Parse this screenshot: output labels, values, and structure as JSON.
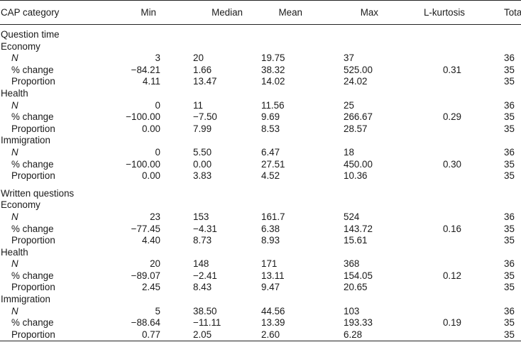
{
  "headers": [
    "CAP category",
    "Min",
    "Median",
    "Mean",
    "Max",
    "L-kurtosis",
    "Total"
  ],
  "sections": [
    {
      "title": "Question time",
      "groups": [
        {
          "name": "Economy",
          "rows": [
            {
              "label": "N",
              "italic": true,
              "min": "3",
              "median": "20",
              "mean": "19.75",
              "max": "37",
              "lk": "",
              "total": "36"
            },
            {
              "label": "% change",
              "italic": false,
              "min": "−84.21",
              "median": "1.66",
              "mean": "38.32",
              "max": "525.00",
              "lk": "0.31",
              "total": "35"
            },
            {
              "label": "Proportion",
              "italic": false,
              "min": "4.11",
              "median": "13.47",
              "mean": "14.02",
              "max": "24.02",
              "lk": "",
              "total": "35"
            }
          ]
        },
        {
          "name": "Health",
          "rows": [
            {
              "label": "N",
              "italic": true,
              "min": "0",
              "median": "11",
              "mean": "11.56",
              "max": "25",
              "lk": "",
              "total": "36"
            },
            {
              "label": "% change",
              "italic": false,
              "min": "−100.00",
              "median": "−7.50",
              "mean": "9.69",
              "max": "266.67",
              "lk": "0.29",
              "total": "35"
            },
            {
              "label": "Proportion",
              "italic": false,
              "min": "0.00",
              "median": "7.99",
              "mean": "8.53",
              "max": "28.57",
              "lk": "",
              "total": "35"
            }
          ]
        },
        {
          "name": "Immigration",
          "rows": [
            {
              "label": "N",
              "italic": true,
              "min": "0",
              "median": "5.50",
              "mean": "6.47",
              "max": "18",
              "lk": "",
              "total": "36"
            },
            {
              "label": "% change",
              "italic": false,
              "min": "−100.00",
              "median": "0.00",
              "mean": "27.51",
              "max": "450.00",
              "lk": "0.30",
              "total": "35"
            },
            {
              "label": "Proportion",
              "italic": false,
              "min": "0.00",
              "median": "3.83",
              "mean": "4.52",
              "max": "10.36",
              "lk": "",
              "total": "35"
            }
          ]
        }
      ]
    },
    {
      "title": "Written questions",
      "groups": [
        {
          "name": "Economy",
          "rows": [
            {
              "label": "N",
              "italic": true,
              "min": "23",
              "median": "153",
              "mean": "161.7",
              "max": "524",
              "lk": "",
              "total": "36"
            },
            {
              "label": "% change",
              "italic": false,
              "min": "−77.45",
              "median": "−4.31",
              "mean": "6.38",
              "max": "143.72",
              "lk": "0.16",
              "total": "35"
            },
            {
              "label": "Proportion",
              "italic": false,
              "min": "4.40",
              "median": "8.73",
              "mean": "8.93",
              "max": "15.61",
              "lk": "",
              "total": "35"
            }
          ]
        },
        {
          "name": "Health",
          "rows": [
            {
              "label": "N",
              "italic": true,
              "min": "20",
              "median": "148",
              "mean": "171",
              "max": "368",
              "lk": "",
              "total": "36"
            },
            {
              "label": "% change",
              "italic": false,
              "min": "−89.07",
              "median": "−2.41",
              "mean": "13.11",
              "max": "154.05",
              "lk": "0.12",
              "total": "35"
            },
            {
              "label": "Proportion",
              "italic": false,
              "min": "2.45",
              "median": "8.43",
              "mean": "9.47",
              "max": "20.65",
              "lk": "",
              "total": "35"
            }
          ]
        },
        {
          "name": "Immigration",
          "rows": [
            {
              "label": "N",
              "italic": true,
              "min": "5",
              "median": "38.50",
              "mean": "44.56",
              "max": "103",
              "lk": "",
              "total": "36"
            },
            {
              "label": "% change",
              "italic": false,
              "min": "−88.64",
              "median": "−11.11",
              "mean": "13.39",
              "max": "193.33",
              "lk": "0.19",
              "total": "35"
            },
            {
              "label": "Proportion",
              "italic": false,
              "min": "0.77",
              "median": "2.05",
              "mean": "2.60",
              "max": "6.28",
              "lk": "",
              "total": "35"
            }
          ]
        }
      ]
    }
  ]
}
